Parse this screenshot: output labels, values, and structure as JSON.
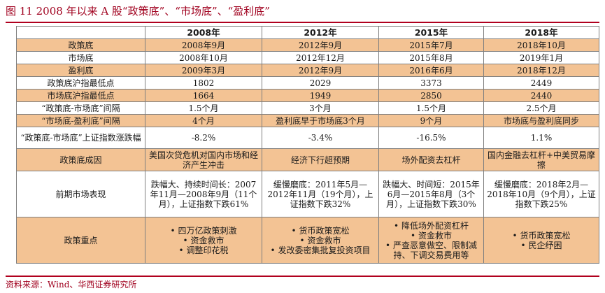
{
  "title": "图 11 2008 年以来 A 股“政策底”、“市场底”、“盈利底”",
  "source": "资料来源：Wind、华西证券研究所",
  "columns": [
    "",
    "2008年",
    "2012年",
    "2015年",
    "2018年"
  ],
  "rows": {
    "policy_bottom": {
      "label": "政策底",
      "cells": [
        "2008年9月",
        "2012年9月",
        "2015年7月",
        "2018年10月"
      ]
    },
    "market_bottom": {
      "label": "市场底",
      "cells": [
        "2008年10月",
        "2012年12月",
        "2015年8月",
        "2019年1月"
      ]
    },
    "earnings_bottom": {
      "label": "盈利底",
      "cells": [
        "2009年3月",
        "2012年9月",
        "2016年6月",
        "2018年12月"
      ]
    },
    "policy_low": {
      "label": "政策底沪指最低点",
      "cells": [
        "1802",
        "2029",
        "3373",
        "2449"
      ]
    },
    "market_low": {
      "label": "市场底沪指最低点",
      "cells": [
        "1664",
        "1949",
        "2850",
        "2440"
      ]
    },
    "pm_interval": {
      "label": "“政策底-市场底”间隔",
      "cells": [
        "1.5个月",
        "3个月",
        "1.5个月",
        "2.5个月"
      ]
    },
    "me_interval": {
      "label": "“市场底-盈利底”间隔",
      "cells": [
        "4个月",
        "盈利底早于市场底3个月",
        "9个月",
        "市场底与盈利底同步"
      ]
    },
    "pm_change": {
      "label": "“政策底-市场底”上证指数涨跌幅",
      "cells": [
        "-8.2%",
        "-3.4%",
        "-16.5%",
        "1.1%"
      ]
    },
    "cause": {
      "label": "政策底成因",
      "cells": [
        "美国次贷危机对国内市场和经济产生冲击",
        "经济下行超预期",
        "场外配资去杠杆",
        "国内金融去杠杆+中美贸易摩擦"
      ]
    },
    "performance": {
      "label": "前期市场表现",
      "cells": [
        "跌幅大、持续时间长：2007年11月—2008年9月（11个月），上证指数下跌61%",
        "缓慢磨底：2011年5月—2012年11月（19个月），上证指数下跌32%",
        "跌幅大、时间短：2015年6月—2015年8月（3个月），上证指数下跌30%",
        "缓慢磨底：2018年2月—2018年10月（9个月），上证指数下跌25%"
      ]
    },
    "focus": {
      "label": "政策重点",
      "cells": [
        [
          "• 四万亿政策刺激",
          "• 资金救市",
          "• 调整印花税"
        ],
        [
          "• 货币政策宽松",
          "• 资金救市",
          "• 发改委密集批复投资项目"
        ],
        [
          "• 降低场外配资杠杆",
          "• 资金救市",
          "• 严查恶意做空、限制减持、下调交易费用等"
        ],
        [
          "• 货币政策宽松",
          "• 民企纾困"
        ]
      ]
    }
  }
}
